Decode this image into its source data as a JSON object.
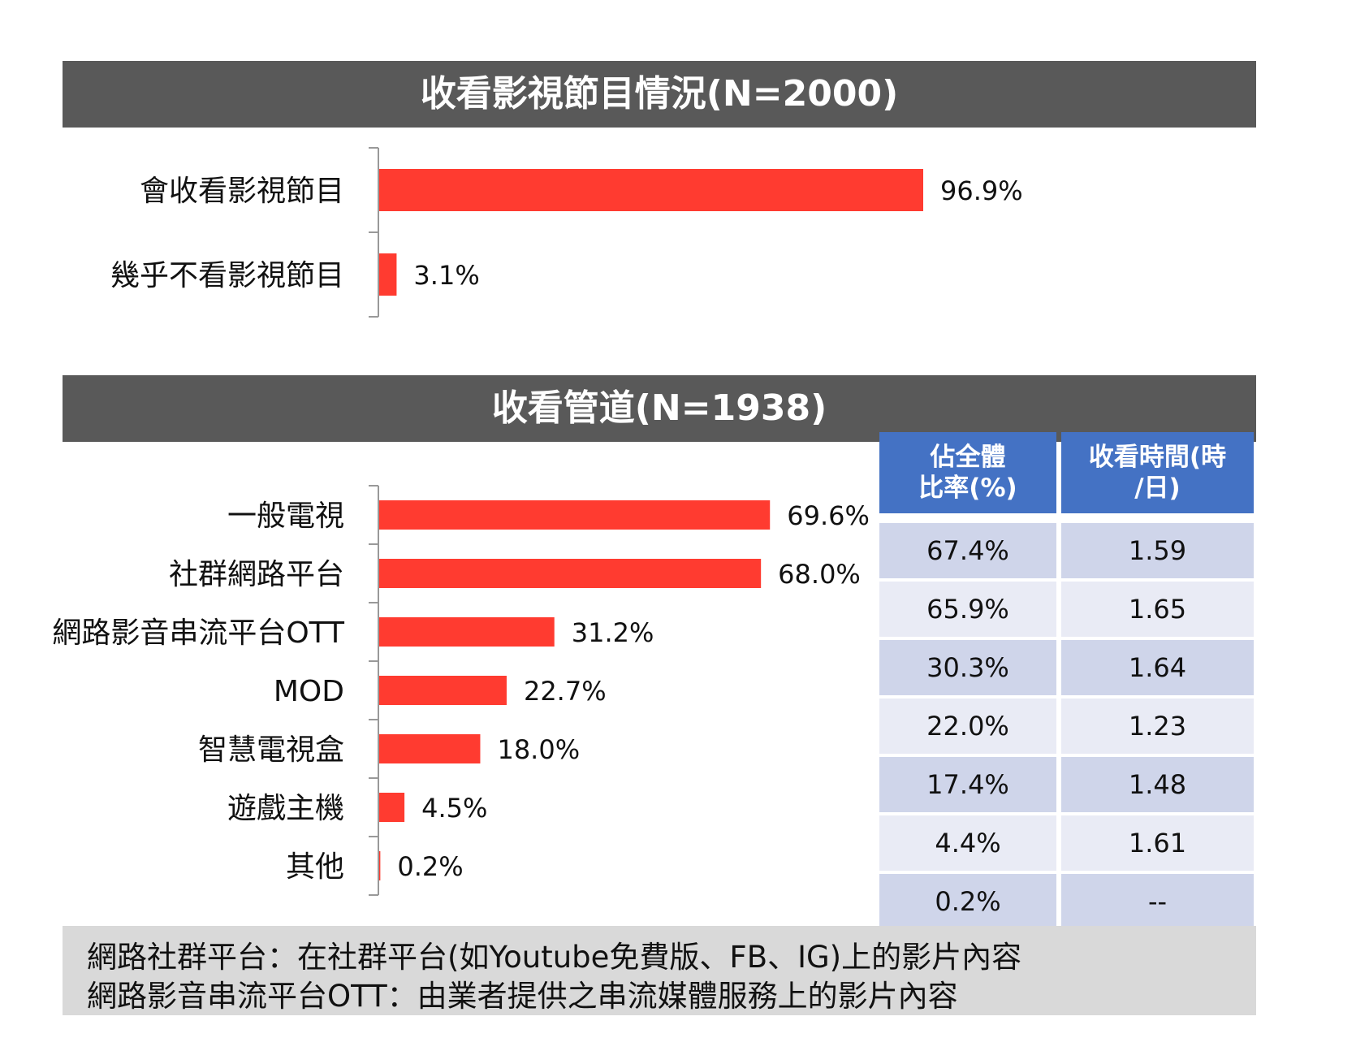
{
  "chart_data": [
    {
      "type": "bar",
      "title": "收看影視節目情況(N=2000)",
      "categories": [
        "會收看影視節目",
        "幾乎不看影視節目"
      ],
      "values": [
        96.9,
        3.1
      ],
      "value_labels": [
        "96.9%",
        "3.1%"
      ],
      "bar_color": "#ff3b30",
      "orientation": "horizontal"
    },
    {
      "type": "bar",
      "title": "收看管道(N=1938)",
      "categories": [
        "一般電視",
        "社群網路平台",
        "網路影音串流平台OTT",
        "MOD",
        "智慧電視盒",
        "遊戲主機",
        "其他"
      ],
      "values": [
        69.6,
        68.0,
        31.2,
        22.7,
        18.0,
        4.5,
        0.2
      ],
      "value_labels": [
        "69.6%",
        "68.0%",
        "31.2%",
        "22.7%",
        "18.0%",
        "4.5%",
        "0.2%"
      ],
      "bar_color": "#ff3b30",
      "orientation": "horizontal"
    }
  ],
  "table": {
    "headers": [
      "佔全體\n比率(%)",
      "收看時間(時\n/日)"
    ],
    "rows": [
      [
        "67.4%",
        "1.59"
      ],
      [
        "65.9%",
        "1.65"
      ],
      [
        "30.3%",
        "1.64"
      ],
      [
        "22.0%",
        "1.23"
      ],
      [
        "17.4%",
        "1.48"
      ],
      [
        "4.4%",
        "1.61"
      ],
      [
        "0.2%",
        "--"
      ]
    ],
    "header_color": "#4472c4",
    "row_colors": [
      "#cfd5ea",
      "#e9ebf5"
    ]
  },
  "footnotes": [
    "網路社群平台：在社群平台(如Youtube免費版、FB、IG)上的影片內容",
    "網路影音串流平台OTT：由業者提供之串流媒體服務上的影片內容"
  ]
}
